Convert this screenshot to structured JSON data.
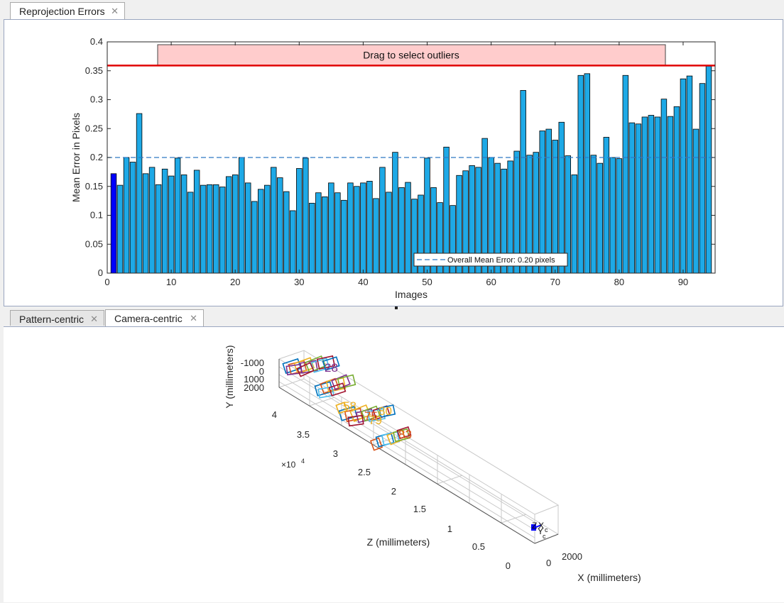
{
  "top_tabs": [
    {
      "label": "Reprojection Errors",
      "active": true
    }
  ],
  "bottom_tabs": [
    {
      "label": "Pattern-centric",
      "active": false
    },
    {
      "label": "Camera-centric",
      "active": true
    }
  ],
  "chart_data": [
    {
      "type": "bar",
      "xlabel": "Images",
      "ylabel": "Mean Error in Pixels",
      "xlim": [
        0,
        95
      ],
      "ylim": [
        0,
        0.4
      ],
      "xticks": [
        0,
        10,
        20,
        30,
        40,
        50,
        60,
        70,
        80,
        90
      ],
      "yticks": [
        0,
        0.05,
        0.1,
        0.15,
        0.2,
        0.25,
        0.3,
        0.35,
        0.4
      ],
      "x": [
        1,
        2,
        3,
        4,
        5,
        6,
        7,
        8,
        9,
        10,
        11,
        12,
        13,
        14,
        15,
        16,
        17,
        18,
        19,
        20,
        21,
        22,
        23,
        24,
        25,
        26,
        27,
        28,
        29,
        30,
        31,
        32,
        33,
        34,
        35,
        36,
        37,
        38,
        39,
        40,
        41,
        42,
        43,
        44,
        45,
        46,
        47,
        48,
        49,
        50,
        51,
        52,
        53,
        54,
        55,
        56,
        57,
        58,
        59,
        60,
        61,
        62,
        63,
        64,
        65,
        66,
        67,
        68,
        69,
        70,
        71,
        72,
        73,
        74,
        75,
        76,
        77,
        78,
        79,
        80,
        81,
        82,
        83,
        84,
        85,
        86,
        87,
        88,
        89,
        90,
        91,
        92,
        93,
        94
      ],
      "values": [
        0.172,
        0.152,
        0.2,
        0.192,
        0.276,
        0.172,
        0.183,
        0.153,
        0.18,
        0.168,
        0.199,
        0.17,
        0.14,
        0.178,
        0.152,
        0.153,
        0.153,
        0.149,
        0.167,
        0.17,
        0.2,
        0.156,
        0.124,
        0.145,
        0.152,
        0.183,
        0.165,
        0.141,
        0.108,
        0.181,
        0.199,
        0.121,
        0.139,
        0.132,
        0.156,
        0.139,
        0.126,
        0.156,
        0.15,
        0.156,
        0.159,
        0.129,
        0.183,
        0.14,
        0.209,
        0.148,
        0.157,
        0.128,
        0.135,
        0.199,
        0.148,
        0.122,
        0.218,
        0.117,
        0.169,
        0.177,
        0.186,
        0.183,
        0.233,
        0.2,
        0.19,
        0.18,
        0.194,
        0.211,
        0.316,
        0.204,
        0.209,
        0.246,
        0.249,
        0.23,
        0.261,
        0.203,
        0.17,
        0.342,
        0.345,
        0.204,
        0.19,
        0.235,
        0.2,
        0.198,
        0.342,
        0.26,
        0.258,
        0.27,
        0.273,
        0.27,
        0.301,
        0.271,
        0.288,
        0.336,
        0.341,
        0.249,
        0.328,
        0.358
      ],
      "highlighted": [
        1
      ],
      "bar_color": "#1ea9e6",
      "highlight_color": "#0000ff",
      "mean_line": {
        "value": 0.2,
        "label": "Overall Mean Error: 0.20 pixels",
        "color": "#2f79c4"
      },
      "threshold": {
        "value": 0.359,
        "color": "#e00000"
      },
      "selection_box": {
        "label": "Drag to select outliers",
        "color": "#ffcccc"
      },
      "legend_placement": "bottom-right"
    },
    {
      "type": "scatter",
      "view": "3d",
      "xlabel": "X (millimeters)",
      "ylabel": "Y (millimeters)",
      "zlabel": "Z (millimeters)",
      "y_ticks": [
        "-1000",
        "0",
        "1000",
        "2000"
      ],
      "z_ticks": [
        "0",
        "0.5",
        "1",
        "1.5",
        "2",
        "2.5",
        "3",
        "3.5",
        "4"
      ],
      "z_exponent": "×10",
      "z_exponent_power": "4",
      "x_ticks": [
        "0",
        "2000"
      ],
      "camera_labels": {
        "z": "Z",
        "x": "X",
        "y": "Y",
        "c": "c"
      },
      "pattern_labels": [
        "28",
        "58",
        "80",
        "75",
        "79",
        "83"
      ]
    }
  ]
}
